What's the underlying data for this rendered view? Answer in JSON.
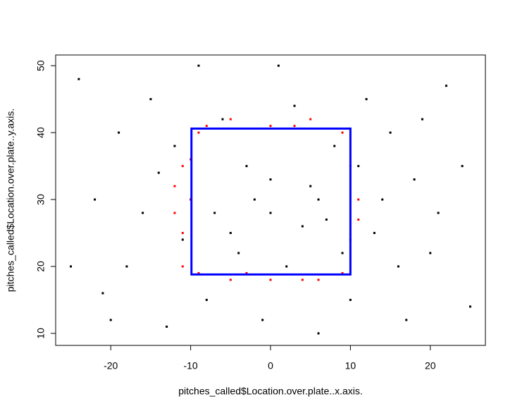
{
  "chart_data": {
    "type": "scatter",
    "xlabel": "pitches_called$Location.over.plate..x.axis.",
    "ylabel": "pitches_called$Location.over.plate..y.axis.",
    "xlim": [
      -26.9,
      26.9
    ],
    "ylim": [
      8.2,
      51.6
    ],
    "xticks": [
      -20,
      -10,
      0,
      10,
      20
    ],
    "yticks": [
      10,
      20,
      30,
      40,
      50
    ],
    "grid": false,
    "series": [
      {
        "color": "#000000",
        "x": [
          -24,
          -20,
          -15,
          -10,
          -5,
          0,
          5,
          10,
          15,
          20,
          24,
          -22,
          -18,
          -12,
          -8,
          -3,
          2,
          7,
          12,
          17,
          22,
          -25,
          -16,
          -6,
          3,
          8,
          13,
          18,
          25,
          -13,
          -1,
          6,
          -19,
          -9,
          1,
          11,
          16,
          21,
          -2,
          4,
          -4,
          0,
          6,
          -7,
          9,
          -11,
          14,
          -14,
          19,
          -21
        ],
        "y": [
          48,
          12,
          45,
          30,
          25,
          28,
          32,
          15,
          40,
          22,
          35,
          30,
          20,
          38,
          15,
          35,
          20,
          27,
          45,
          12,
          47,
          20,
          28,
          42,
          44,
          38,
          25,
          33,
          14,
          11,
          12,
          10,
          40,
          50,
          50,
          35,
          20,
          28,
          30,
          26,
          22,
          33,
          30,
          28,
          22,
          24,
          30,
          34,
          42,
          16
        ]
      },
      {
        "color": "#ff0000",
        "x": [
          -11,
          -10,
          -12,
          -11,
          -10,
          -9,
          -5,
          0,
          5,
          9,
          10,
          11,
          10,
          9,
          4,
          0,
          -5,
          -9,
          -12,
          -11,
          -8,
          3,
          11,
          -3,
          6
        ],
        "y": [
          25,
          30,
          32,
          20,
          36,
          40,
          42,
          41,
          42,
          40,
          35,
          30,
          24,
          19,
          18,
          18,
          18,
          19,
          28,
          35,
          41,
          41,
          27,
          19,
          18
        ]
      }
    ],
    "zone": {
      "color": "#0000ff",
      "xlim": [
        -9.9,
        10.0
      ],
      "ylim": [
        18.8,
        40.6
      ]
    }
  }
}
